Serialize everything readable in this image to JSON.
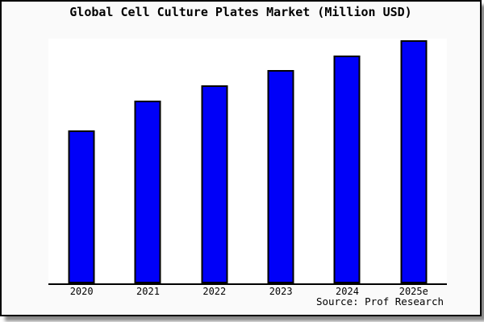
{
  "title": "Global Cell Culture Plates Market (Million USD)",
  "source": "Source: Prof Research",
  "colors": {
    "bar_fill": "#0000f8",
    "bar_border": "#000000",
    "plot_background": "#ffffff",
    "margin_background": "#fafafa",
    "frame_border": "#000000",
    "axis_line": "#000000"
  },
  "chart_data": {
    "type": "bar",
    "title": "Global Cell Culture Plates Market (Million USD)",
    "categories": [
      "2020",
      "2021",
      "2022",
      "2023",
      "2024",
      "2025e"
    ],
    "values": [
      190,
      227,
      246,
      265,
      283,
      302
    ],
    "value_scale": "relative bar heights in px (y-axis shows no ticks or numeric labels)",
    "xlabel": "",
    "ylabel": "",
    "ylim": [
      0,
      304
    ],
    "grid": false,
    "legend": false,
    "bar_color": "#0000f8",
    "source": "Source: Prof Research"
  }
}
